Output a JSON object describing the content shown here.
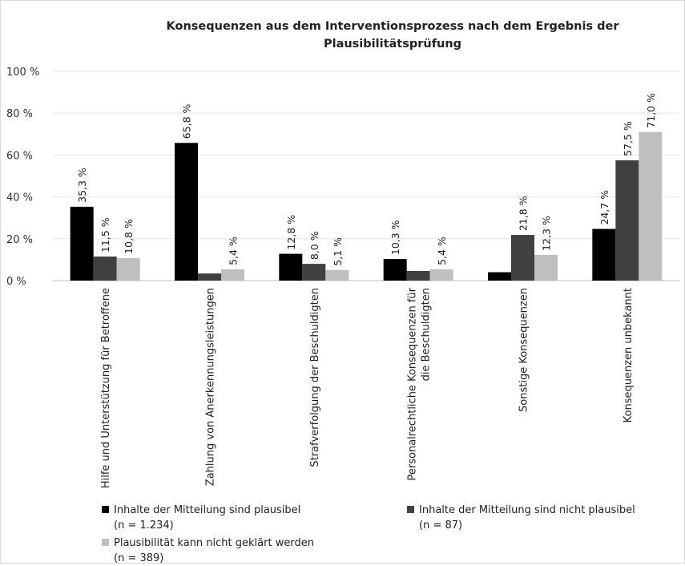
{
  "chart_data": {
    "type": "bar",
    "title": "Konsequenzen aus dem Interventionsprozess nach dem Ergebnis der Plausibilitätsprüfung",
    "title_lines": [
      "Konsequenzen aus dem Interventionsprozess nach dem Ergebnis der",
      "Plausibilitätsprüfung"
    ],
    "categories": [
      [
        "Hilfe und Unterstützung für Betroffene"
      ],
      [
        "Zahlung von Anerkennungsleistungen"
      ],
      [
        "Strafverfolgung der Beschuldigten"
      ],
      [
        "Personalrechtliche Konsequenzen für",
        "die Beschuldigten"
      ],
      [
        "Sonstige Konsequenzen"
      ],
      [
        "Konsequenzen unbekannt"
      ]
    ],
    "series": [
      {
        "name": "Inhalte der Mitteilung sind plausibel",
        "n_label": "(n = 1.234)",
        "color": "#000000",
        "values": [
          35.3,
          65.8,
          12.8,
          10.3,
          4.0,
          24.7
        ],
        "labels": [
          "35,3 %",
          "65,8 %",
          "12,8 %",
          "10,3 %",
          "",
          "24,7 %"
        ]
      },
      {
        "name": "Inhalte der Mitteilung sind nicht plausibel",
        "n_label": "(n = 87)",
        "color": "#404040",
        "values": [
          11.5,
          3.4,
          8.0,
          4.6,
          21.8,
          57.5
        ],
        "labels": [
          "11,5 %",
          "",
          "8,0 %",
          "",
          "21,8 %",
          "57,5 %"
        ]
      },
      {
        "name": "Plausibilität kann nicht geklärt werden",
        "n_label": "(n = 389)",
        "color": "#bfbfbf",
        "values": [
          10.8,
          5.4,
          5.1,
          5.4,
          12.3,
          71.0
        ],
        "labels": [
          "10,8 %",
          "5,4 %",
          "5,1 %",
          "5,4 %",
          "12,3 %",
          "71,0 %"
        ]
      }
    ],
    "ylim": [
      0,
      100
    ],
    "yticks": [
      0,
      20,
      40,
      60,
      80,
      100
    ],
    "ytick_labels": [
      "0 %",
      "20 %",
      "40 %",
      "60 %",
      "80 %",
      "100 %"
    ],
    "grid": true,
    "legend_position": "bottom"
  }
}
